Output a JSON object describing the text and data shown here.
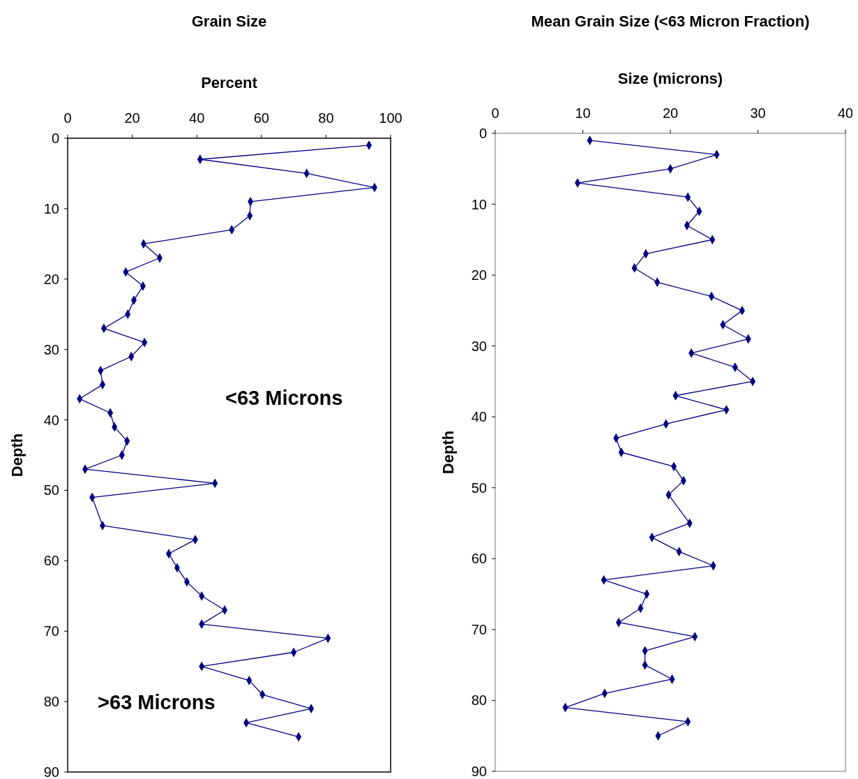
{
  "chart_data": [
    {
      "type": "line",
      "title": "Grain Size",
      "xlabel": "Percent",
      "ylabel": "Depth",
      "marker": "diamond",
      "line_style": "solid",
      "xlim": [
        0,
        100
      ],
      "xticks": [
        0,
        20,
        40,
        60,
        80,
        100
      ],
      "ylim": [
        90,
        0
      ],
      "yticks": [
        0,
        10,
        20,
        30,
        40,
        50,
        60,
        70,
        80,
        90
      ],
      "annotations": [
        "<63 Microns",
        ">63 Microns"
      ],
      "series": [
        {
          "color": "#000080",
          "x": [
            93.3,
            41,
            74,
            95,
            56.6,
            56.4,
            50.8,
            23.5,
            28.5,
            18,
            23.3,
            20.5,
            18.6,
            11.2,
            23.8,
            19.7,
            10.2,
            10.8,
            3.7,
            13.2,
            14.5,
            18.4,
            16.8,
            5.4,
            45.6,
            7.6,
            10.8,
            39.5,
            31.3,
            33.9,
            36.9,
            41.5,
            48.6,
            41.5,
            80.6,
            70,
            41.5,
            56.2,
            60.3,
            75.4,
            55.3,
            71.5
          ],
          "values": [
            1,
            3,
            5,
            7,
            9,
            11,
            13,
            15,
            17,
            19,
            21,
            23,
            25,
            27,
            29,
            31,
            33,
            35,
            37,
            39,
            41,
            43,
            45,
            47,
            49,
            51,
            55,
            57,
            59,
            61,
            63,
            65,
            67,
            69,
            71,
            73,
            75,
            77,
            79,
            81,
            83,
            85
          ]
        }
      ]
    },
    {
      "type": "line",
      "title": "Mean Grain Size (<63 Micron Fraction)",
      "xlabel": "Size (microns)",
      "ylabel": "Depth",
      "marker": "diamond",
      "line_style": "solid",
      "xlim": [
        0,
        40
      ],
      "xticks": [
        0,
        10,
        20,
        30,
        40
      ],
      "ylim": [
        90,
        0
      ],
      "yticks": [
        0,
        10,
        20,
        30,
        40,
        50,
        60,
        70,
        80,
        90
      ],
      "series": [
        {
          "color": "#000080",
          "x": [
            10.8,
            25.3,
            20,
            9.4,
            22,
            23.3,
            21.9,
            24.8,
            17.2,
            15.9,
            18.5,
            24.7,
            28.2,
            26,
            28.9,
            22.4,
            27.4,
            29.4,
            20.6,
            26.4,
            19.5,
            13.8,
            14.4,
            20.4,
            21.5,
            19.8,
            22.2,
            17.9,
            21,
            24.9,
            12.4,
            17.3,
            16.6,
            14.1,
            22.8,
            17.1,
            17.1,
            20.2,
            12.5,
            8,
            22,
            18.6
          ],
          "values": [
            1,
            3,
            5,
            7,
            9,
            11,
            13,
            15,
            17,
            19,
            21,
            23,
            25,
            27,
            29,
            31,
            33,
            35,
            37,
            39,
            41,
            43,
            45,
            47,
            49,
            51,
            55,
            57,
            59,
            61,
            63,
            65,
            67,
            69,
            71,
            73,
            75,
            77,
            79,
            81,
            83,
            85
          ]
        }
      ]
    }
  ]
}
